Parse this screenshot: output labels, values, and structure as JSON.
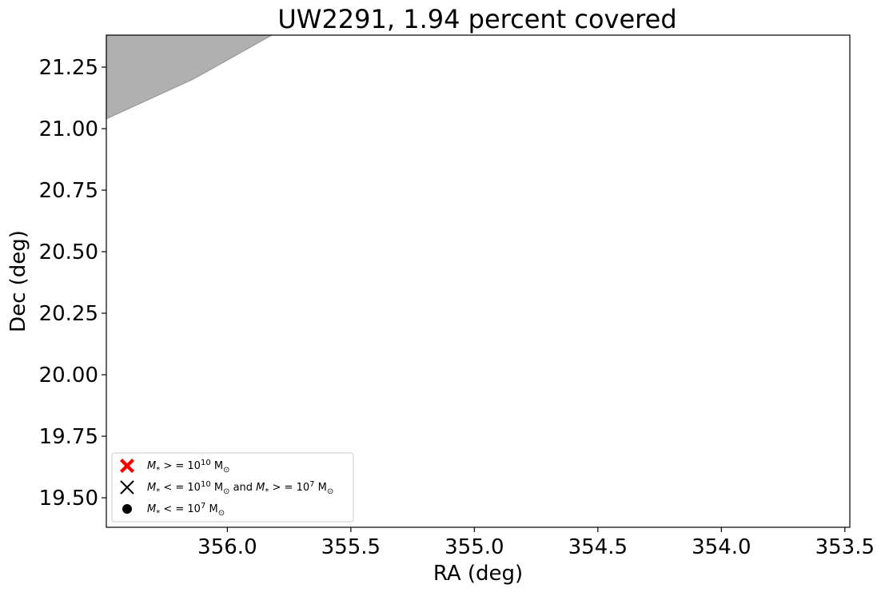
{
  "chart_data": {
    "type": "area",
    "title": "UW2291, 1.94 percent covered",
    "xlabel": "RA (deg)",
    "ylabel": "Dec (deg)",
    "xlim": [
      356.49,
      353.48
    ],
    "ylim": [
      19.38,
      21.38
    ],
    "xticks": [
      356.0,
      355.5,
      355.0,
      354.5,
      354.0,
      353.5
    ],
    "xtick_labels": [
      "356.0",
      "355.5",
      "355.0",
      "354.5",
      "354.0",
      "353.5"
    ],
    "yticks": [
      19.5,
      19.75,
      20.0,
      20.25,
      20.5,
      20.75,
      21.0,
      21.25
    ],
    "ytick_labels": [
      "19.50",
      "19.75",
      "20.00",
      "20.25",
      "20.50",
      "20.75",
      "21.00",
      "21.25"
    ],
    "coverage_polygon": [
      {
        "x": 356.49,
        "y": 21.04
      },
      {
        "x": 356.14,
        "y": 21.2
      },
      {
        "x": 355.82,
        "y": 21.38
      },
      {
        "x": 356.49,
        "y": 21.38
      }
    ],
    "coverage_color": "#b0b0b0",
    "coverage_edge_color": "#9a9a9a",
    "series": [],
    "grid": false,
    "legend_position": "lower-left",
    "legend": [
      {
        "marker": "x-filled",
        "color": "#ff0000",
        "label_html": "M<sub>*</sub> > = 10<sup>10</sup> M<sub>⊙</sub>",
        "parts": [
          "M",
          "*",
          " > = 10",
          "10",
          " M",
          "⊙"
        ]
      },
      {
        "marker": "x",
        "color": "#000000",
        "parts": [
          "M",
          "*",
          " < = 10",
          "10",
          " M",
          "⊙",
          " and ",
          "M",
          "*",
          " > = 10",
          "7",
          " M",
          "⊙"
        ]
      },
      {
        "marker": "circle",
        "color": "#000000",
        "parts": [
          "M",
          "*",
          " < = 10",
          "7",
          " M",
          "⊙"
        ]
      }
    ]
  }
}
